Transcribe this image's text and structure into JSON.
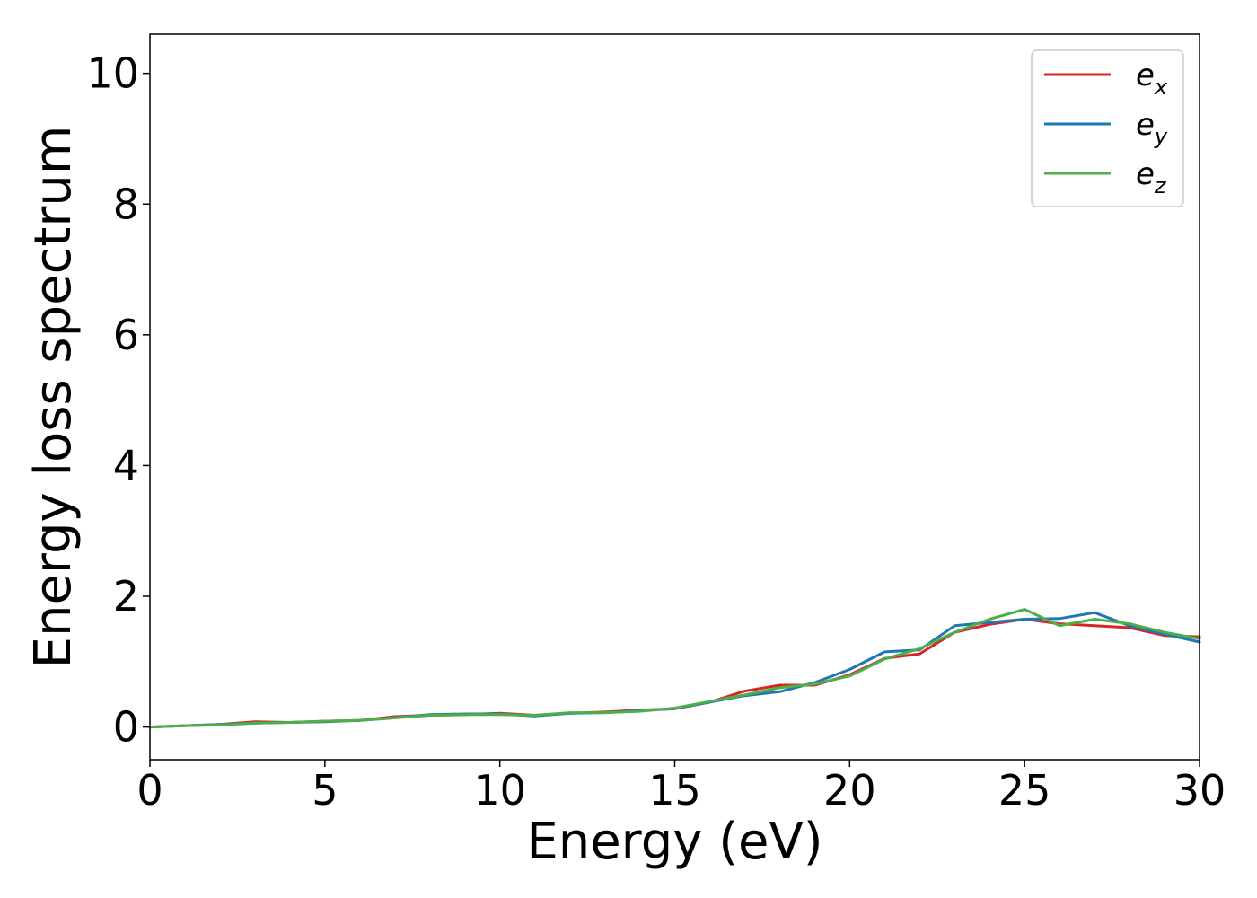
{
  "chart_data": {
    "type": "line",
    "title": "",
    "xlabel": "Energy (eV)",
    "ylabel": "Energy loss spectrum",
    "xlim": [
      0,
      30
    ],
    "ylim": [
      -0.5,
      10.6
    ],
    "xticks": [
      0,
      5,
      10,
      15,
      20,
      25,
      30
    ],
    "yticks": [
      0,
      2,
      4,
      6,
      8,
      10
    ],
    "grid": false,
    "legend_position": "top-right",
    "x": [
      0,
      1,
      2,
      3,
      4,
      5,
      6,
      7,
      8,
      9,
      10,
      11,
      12,
      13,
      14,
      15,
      16,
      17,
      18,
      19,
      20,
      21,
      22,
      23,
      24,
      25,
      26,
      27,
      28,
      29,
      30
    ],
    "series": [
      {
        "name": "e",
        "subscript": "x",
        "color": "#d62728",
        "values": [
          0.0,
          0.02,
          0.04,
          0.08,
          0.07,
          0.09,
          0.1,
          0.16,
          0.18,
          0.19,
          0.21,
          0.18,
          0.21,
          0.23,
          0.26,
          0.28,
          0.38,
          0.55,
          0.64,
          0.64,
          0.8,
          1.05,
          1.12,
          1.45,
          1.57,
          1.65,
          1.58,
          1.55,
          1.52,
          1.4,
          1.38
        ]
      },
      {
        "name": "e",
        "subscript": "y",
        "color": "#1f77b4",
        "values": [
          0.0,
          0.02,
          0.04,
          0.06,
          0.07,
          0.08,
          0.1,
          0.14,
          0.19,
          0.2,
          0.2,
          0.17,
          0.21,
          0.22,
          0.25,
          0.28,
          0.38,
          0.48,
          0.54,
          0.68,
          0.88,
          1.15,
          1.18,
          1.55,
          1.6,
          1.65,
          1.66,
          1.75,
          1.55,
          1.42,
          1.3
        ]
      },
      {
        "name": "e",
        "subscript": "z",
        "color": "#4daf4a",
        "values": [
          0.0,
          0.02,
          0.03,
          0.06,
          0.07,
          0.09,
          0.1,
          0.14,
          0.18,
          0.19,
          0.19,
          0.18,
          0.22,
          0.22,
          0.24,
          0.29,
          0.39,
          0.49,
          0.6,
          0.66,
          0.78,
          1.04,
          1.2,
          1.45,
          1.65,
          1.8,
          1.55,
          1.65,
          1.58,
          1.45,
          1.35
        ]
      }
    ]
  }
}
